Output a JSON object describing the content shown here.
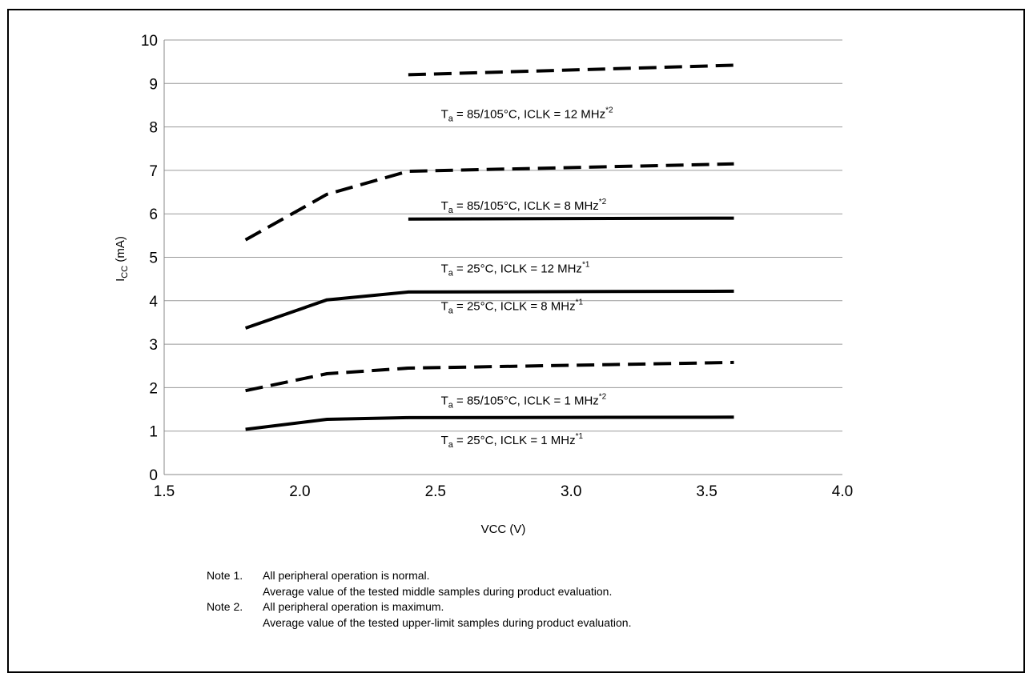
{
  "chart_data": {
    "type": "line",
    "xlabel": "VCC (V)",
    "ylabel": {
      "main": "I",
      "sub": "CC",
      "rest": " (mA)"
    },
    "xlim": [
      1.5,
      4.0
    ],
    "ylim": [
      0,
      10
    ],
    "xticks": [
      "1.5",
      "2.0",
      "2.5",
      "3.0",
      "3.5",
      "4.0"
    ],
    "yticks": [
      "0",
      "1",
      "2",
      "3",
      "4",
      "5",
      "6",
      "7",
      "8",
      "9",
      "10"
    ],
    "grid": "horizontal",
    "series": [
      {
        "name": "T_a = 85/105°C, ICLK = 12 MHz*2",
        "style": "dashed",
        "x": [
          2.4,
          3.6
        ],
        "y": [
          9.2,
          9.42
        ]
      },
      {
        "name": "T_a = 85/105°C, ICLK = 8 MHz*2",
        "style": "dashed",
        "x": [
          1.8,
          2.1,
          2.4,
          3.6
        ],
        "y": [
          5.4,
          6.45,
          6.98,
          7.15
        ]
      },
      {
        "name": "T_a = 25°C, ICLK = 12 MHz*1",
        "style": "solid",
        "x": [
          2.4,
          3.6
        ],
        "y": [
          5.88,
          5.9
        ]
      },
      {
        "name": "T_a = 25°C, ICLK = 8 MHz*1",
        "style": "solid",
        "x": [
          1.8,
          2.1,
          2.4,
          3.6
        ],
        "y": [
          3.37,
          4.02,
          4.2,
          4.22
        ]
      },
      {
        "name": "T_a = 85/105°C, ICLK = 1 MHz*2",
        "style": "dashed",
        "x": [
          1.8,
          2.1,
          2.4,
          3.6
        ],
        "y": [
          1.93,
          2.32,
          2.45,
          2.58
        ]
      },
      {
        "name": "T_a = 25°C, ICLK = 1 MHz*1",
        "style": "solid",
        "x": [
          1.8,
          2.1,
          2.4,
          3.6
        ],
        "y": [
          1.04,
          1.27,
          1.31,
          1.32
        ]
      }
    ],
    "annotations": [
      {
        "prefix": "T",
        "sub": "a",
        "text": " = 85/105°C, ICLK = 12 MHz",
        "sup": "*2",
        "x": 2.52,
        "y": 8.2
      },
      {
        "prefix": "T",
        "sub": "a",
        "text": " = 85/105°C, ICLK = 8 MHz",
        "sup": "*2",
        "x": 2.52,
        "y": 6.1
      },
      {
        "prefix": "T",
        "sub": "a",
        "text": " = 25°C, ICLK = 12 MHz",
        "sup": "*1",
        "x": 2.52,
        "y": 4.65
      },
      {
        "prefix": "T",
        "sub": "a",
        "text": " = 25°C, ICLK = 8 MHz",
        "sup": "*1",
        "x": 2.52,
        "y": 3.78
      },
      {
        "prefix": "T",
        "sub": "a",
        "text": " = 85/105°C, ICLK = 1 MHz",
        "sup": "*2",
        "x": 2.52,
        "y": 1.61
      },
      {
        "prefix": "T",
        "sub": "a",
        "text": " = 25°C, ICLK = 1 MHz",
        "sup": "*1",
        "x": 2.52,
        "y": 0.7
      }
    ]
  },
  "notes": [
    {
      "label": "Note 1.",
      "lines": [
        "All peripheral operation is normal.",
        "Average value of the tested middle samples during product evaluation."
      ]
    },
    {
      "label": "Note 2.",
      "lines": [
        "All peripheral operation is maximum.",
        "Average value of the tested upper-limit samples during product evaluation."
      ]
    }
  ]
}
